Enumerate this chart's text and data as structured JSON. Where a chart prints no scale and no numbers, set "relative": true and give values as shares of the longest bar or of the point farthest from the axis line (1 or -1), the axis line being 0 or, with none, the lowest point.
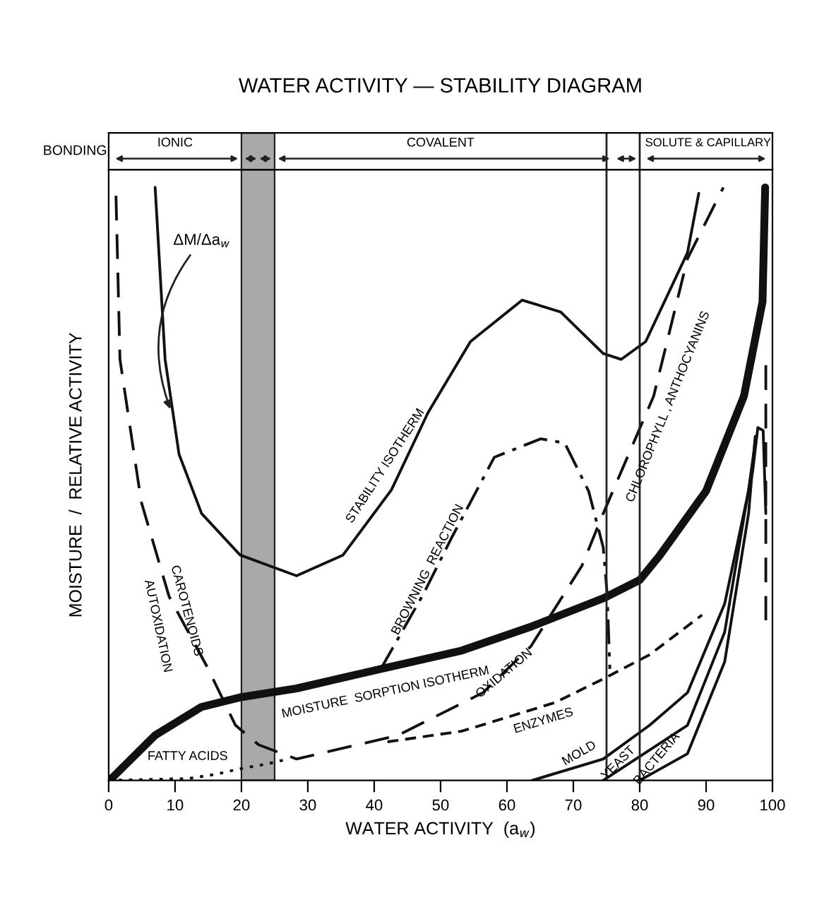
{
  "chart_data": {
    "type": "line",
    "title": "WATER ACTIVITY — STABILITY DIAGRAM",
    "xlabel": "WATER ACTIVITY  (a$_{w}$)",
    "ylabel": "MOISTURE  /  RELATIVE ACTIVITY",
    "relative": true,
    "xlim": [
      0,
      100
    ],
    "xticks": [
      0,
      10,
      20,
      30,
      40,
      50,
      60,
      70,
      80,
      90,
      100
    ],
    "grid": false,
    "legend": false,
    "series": [
      {
        "color": "#111111",
        "line_style": "solid",
        "x": [
          7.0,
          8.5,
          10.6,
          14.0,
          19.8,
          28.3,
          35.3,
          42.6,
          48.1,
          54.5,
          62.3,
          68.1,
          74.5,
          77.2,
          80.9,
          87.2,
          88.9
        ],
        "values": [
          1.0,
          0.71,
          0.55,
          0.45,
          0.38,
          0.345,
          0.38,
          0.49,
          0.62,
          0.74,
          0.81,
          0.79,
          0.72,
          0.71,
          0.74,
          0.89,
          0.99
        ]
      },
      {
        "color": "#111111",
        "line_style": "solid",
        "x": [
          0,
          0.6,
          7,
          14,
          19.8,
          28.3,
          41,
          53.2,
          63.8,
          74.5,
          80,
          83,
          90,
          95.7,
          98.5,
          98.9
        ],
        "values": [
          0,
          0.005,
          0.076,
          0.124,
          0.14,
          0.155,
          0.188,
          0.219,
          0.26,
          0.307,
          0.338,
          0.379,
          0.488,
          0.648,
          0.807,
          1.0
        ]
      },
      {
        "color": "#111111",
        "line_style": "dashed",
        "x": [
          1.1,
          1.7,
          4.9,
          9.1,
          14.9,
          19.1,
          22.6,
          28.3,
          43.6,
          56.4,
          63.6,
          71.3,
          74.5,
          82.1,
          87.2,
          92.6
        ],
        "values": [
          0.986,
          0.71,
          0.47,
          0.31,
          0.19,
          0.093,
          0.06,
          0.036,
          0.076,
          0.148,
          0.226,
          0.362,
          0.45,
          0.648,
          0.88,
          1.0
        ]
      },
      {
        "color": "#111111",
        "line_style": "dashdot",
        "x": [
          41,
          47.4,
          51.7,
          58.1,
          65.1,
          68.7,
          72.3,
          74.5,
          75.1,
          75.5
        ],
        "values": [
          0.188,
          0.314,
          0.41,
          0.545,
          0.576,
          0.569,
          0.488,
          0.393,
          0.314,
          0.188
        ]
      },
      {
        "color": "#111111",
        "line_style": "dotted",
        "x": [
          0,
          12,
          16,
          20,
          24,
          27
        ],
        "values": [
          0,
          0.003,
          0.01,
          0.02,
          0.028,
          0.036
        ]
      },
      {
        "color": "#111111",
        "line_style": "dashed",
        "x": [
          42,
          53.2,
          67.2,
          74.5,
          81.5,
          89.4
        ],
        "values": [
          0.065,
          0.083,
          0.131,
          0.171,
          0.212,
          0.279
        ]
      },
      {
        "color": "#111111",
        "line_style": "solid",
        "x": [
          63.8,
          74.5,
          81.5,
          87.2,
          92.8,
          97,
          97.8,
          98.6,
          99
        ],
        "values": [
          0,
          0.036,
          0.093,
          0.148,
          0.298,
          0.52,
          0.595,
          0.59,
          0.45
        ]
      },
      {
        "color": "#111111",
        "line_style": "solid",
        "x": [
          74.5,
          87.2,
          92.8,
          96.4,
          97.4
        ],
        "values": [
          0,
          0.093,
          0.25,
          0.49,
          0.57
        ]
      },
      {
        "color": "#111111",
        "line_style": "solid",
        "x": [
          80,
          87.2,
          92.8,
          96.4,
          97.4
        ],
        "values": [
          0,
          0.045,
          0.2,
          0.45,
          0.58
        ]
      },
      {
        "color": "#111111",
        "line_style": "dashed",
        "x": [
          99,
          99
        ],
        "values": [
          0.7,
          0.27
        ]
      }
    ],
    "ref_lines": [
      {
        "axis": "x",
        "value": 75
      },
      {
        "axis": "x",
        "value": 80
      }
    ],
    "bands": [
      {
        "axis": "x",
        "from": 20,
        "to": 25,
        "color": "#a9a9a9"
      }
    ],
    "annotations": [
      "BONDING",
      {
        "text": "ΔM/Δa$_{w}$",
        "x": 9.5,
        "y": 0.62
      },
      "STABILITY ISOTHERM",
      "BROWNING  REACTION",
      "MOISTURE  SORPTION ISOTHERM",
      "OXIDATION",
      "ENZYMES",
      "MOLD",
      "YEAST",
      "BACTERIA",
      "AUTOXIDATION",
      "CAROTENOIDS",
      "CHLOROPHYLL , ANTHOCYANINS",
      "FATTY ACIDS",
      "IONIC",
      "COVALENT",
      "SOLUTE & CAPILLARY"
    ]
  }
}
